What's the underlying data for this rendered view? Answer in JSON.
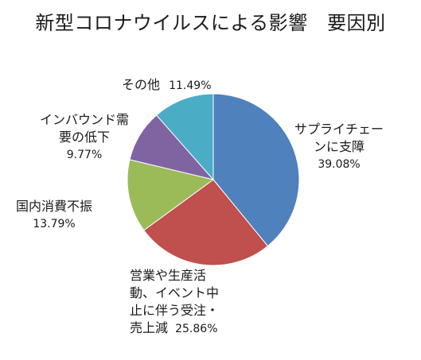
{
  "chart_data": {
    "type": "pie",
    "title": "新型コロナウイルスによる影響　要因別",
    "start_angle_deg": 0,
    "direction": "clockwise",
    "slices": [
      {
        "label_lines": [
          "サプライチェー",
          "ンに支障"
        ],
        "label": "サプライチェーンに支障",
        "value": 39.08,
        "value_text": "39.08%",
        "color": "#4f81bd"
      },
      {
        "label_lines": [
          "営業や生産活",
          "動、イベント中",
          "止に伴う受注・",
          "売上減"
        ],
        "label": "営業や生産活動、イベント中止に伴う受注・売上減",
        "value": 25.86,
        "value_text": "25.86%",
        "color": "#c0504d"
      },
      {
        "label_lines": [
          "国内消費不振"
        ],
        "label": "国内消費不振",
        "value": 13.79,
        "value_text": "13.79%",
        "color": "#9bbb59"
      },
      {
        "label_lines": [
          "インバウンド需",
          "要の低下"
        ],
        "label": "インバウンド需要の低下",
        "value": 9.77,
        "value_text": "9.77%",
        "color": "#8064a2"
      },
      {
        "label_lines": [
          "その他"
        ],
        "label": "その他",
        "value": 11.49,
        "value_text": "11.49%",
        "color": "#4bacc6"
      }
    ]
  }
}
